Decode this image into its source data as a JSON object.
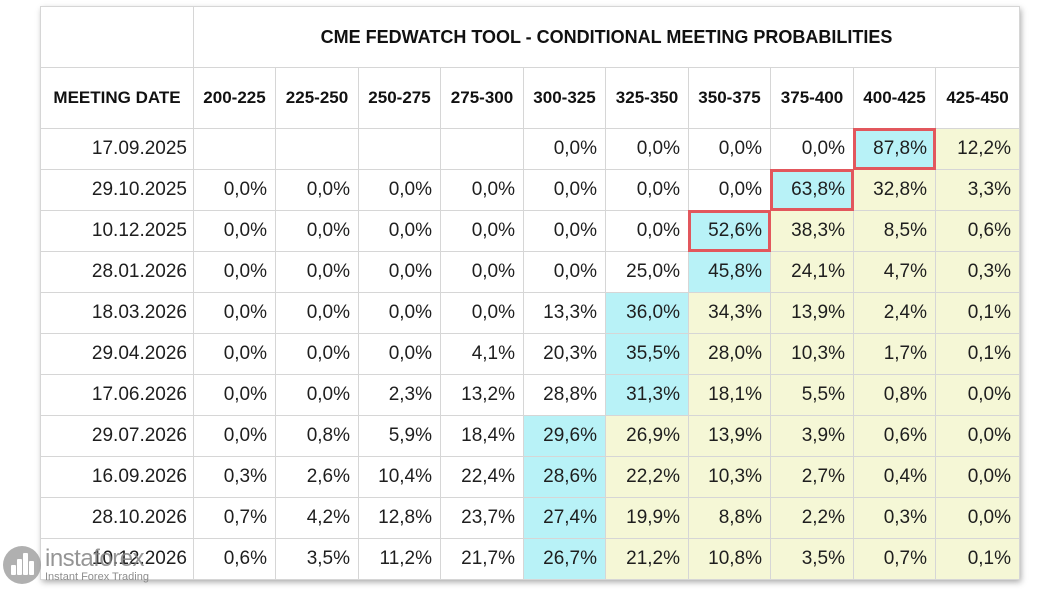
{
  "table": {
    "title": "CME FEDWATCH TOOL - CONDITIONAL MEETING PROBABILITIES",
    "date_header": "MEETING DATE",
    "columns": [
      "200-225",
      "225-250",
      "250-275",
      "275-300",
      "300-325",
      "325-350",
      "350-375",
      "375-400",
      "400-425",
      "425-450"
    ],
    "rows": [
      {
        "date": "17.09.2025",
        "values": [
          "",
          "",
          "",
          "",
          "0,0%",
          "0,0%",
          "0,0%",
          "0,0%",
          "87,8%",
          "12,2%"
        ]
      },
      {
        "date": "29.10.2025",
        "values": [
          "0,0%",
          "0,0%",
          "0,0%",
          "0,0%",
          "0,0%",
          "0,0%",
          "0,0%",
          "63,8%",
          "32,8%",
          "3,3%"
        ]
      },
      {
        "date": "10.12.2025",
        "values": [
          "0,0%",
          "0,0%",
          "0,0%",
          "0,0%",
          "0,0%",
          "0,0%",
          "52,6%",
          "38,3%",
          "8,5%",
          "0,6%"
        ]
      },
      {
        "date": "28.01.2026",
        "values": [
          "0,0%",
          "0,0%",
          "0,0%",
          "0,0%",
          "0,0%",
          "25,0%",
          "45,8%",
          "24,1%",
          "4,7%",
          "0,3%"
        ]
      },
      {
        "date": "18.03.2026",
        "values": [
          "0,0%",
          "0,0%",
          "0,0%",
          "0,0%",
          "13,3%",
          "36,0%",
          "34,3%",
          "13,9%",
          "2,4%",
          "0,1%"
        ]
      },
      {
        "date": "29.04.2026",
        "values": [
          "0,0%",
          "0,0%",
          "0,0%",
          "4,1%",
          "20,3%",
          "35,5%",
          "28,0%",
          "10,3%",
          "1,7%",
          "0,1%"
        ]
      },
      {
        "date": "17.06.2026",
        "values": [
          "0,0%",
          "0,0%",
          "2,3%",
          "13,2%",
          "28,8%",
          "31,3%",
          "18,1%",
          "5,5%",
          "0,8%",
          "0,0%"
        ]
      },
      {
        "date": "29.07.2026",
        "values": [
          "0,0%",
          "0,8%",
          "5,9%",
          "18,4%",
          "29,6%",
          "26,9%",
          "13,9%",
          "3,9%",
          "0,6%",
          "0,0%"
        ]
      },
      {
        "date": "16.09.2026",
        "values": [
          "0,3%",
          "2,6%",
          "10,4%",
          "22,4%",
          "28,6%",
          "22,2%",
          "10,3%",
          "2,7%",
          "0,4%",
          "0,0%"
        ]
      },
      {
        "date": "28.10.2026",
        "values": [
          "0,7%",
          "4,2%",
          "12,8%",
          "23,7%",
          "27,4%",
          "19,9%",
          "8,8%",
          "2,2%",
          "0,3%",
          "0,0%"
        ]
      },
      {
        "date": "10.12.2026",
        "values": [
          "0,6%",
          "3,5%",
          "11,2%",
          "21,7%",
          "26,7%",
          "21,2%",
          "10,8%",
          "3,5%",
          "0,7%",
          "0,1%"
        ]
      }
    ],
    "yellow_cells": [
      [
        0,
        8
      ],
      [
        0,
        9
      ],
      [
        1,
        8
      ],
      [
        1,
        9
      ],
      [
        2,
        7
      ],
      [
        2,
        8
      ],
      [
        2,
        9
      ],
      [
        3,
        7
      ],
      [
        3,
        8
      ],
      [
        3,
        9
      ],
      [
        4,
        6
      ],
      [
        4,
        7
      ],
      [
        4,
        8
      ],
      [
        4,
        9
      ],
      [
        5,
        6
      ],
      [
        5,
        7
      ],
      [
        5,
        8
      ],
      [
        5,
        9
      ],
      [
        6,
        6
      ],
      [
        6,
        7
      ],
      [
        6,
        8
      ],
      [
        6,
        9
      ],
      [
        7,
        5
      ],
      [
        7,
        6
      ],
      [
        7,
        7
      ],
      [
        7,
        8
      ],
      [
        7,
        9
      ],
      [
        8,
        5
      ],
      [
        8,
        6
      ],
      [
        8,
        7
      ],
      [
        8,
        8
      ],
      [
        8,
        9
      ],
      [
        9,
        5
      ],
      [
        9,
        6
      ],
      [
        9,
        7
      ],
      [
        9,
        8
      ],
      [
        9,
        9
      ],
      [
        10,
        5
      ],
      [
        10,
        6
      ],
      [
        10,
        7
      ],
      [
        10,
        8
      ],
      [
        10,
        9
      ]
    ],
    "cyan_cells": [
      [
        0,
        8
      ],
      [
        1,
        7
      ],
      [
        2,
        6
      ],
      [
        3,
        6
      ],
      [
        4,
        5
      ],
      [
        5,
        5
      ],
      [
        6,
        5
      ],
      [
        7,
        4
      ],
      [
        8,
        4
      ],
      [
        9,
        4
      ],
      [
        10,
        4
      ]
    ],
    "boxed_cells": [
      [
        0,
        8
      ],
      [
        1,
        7
      ],
      [
        2,
        6
      ]
    ],
    "colors": {
      "yellow": "#f5f7d6",
      "cyan": "#b8f2f7",
      "box_border": "#e2575d"
    }
  },
  "watermark": {
    "brand": "instaforex",
    "tagline": "Instant Forex Trading"
  }
}
